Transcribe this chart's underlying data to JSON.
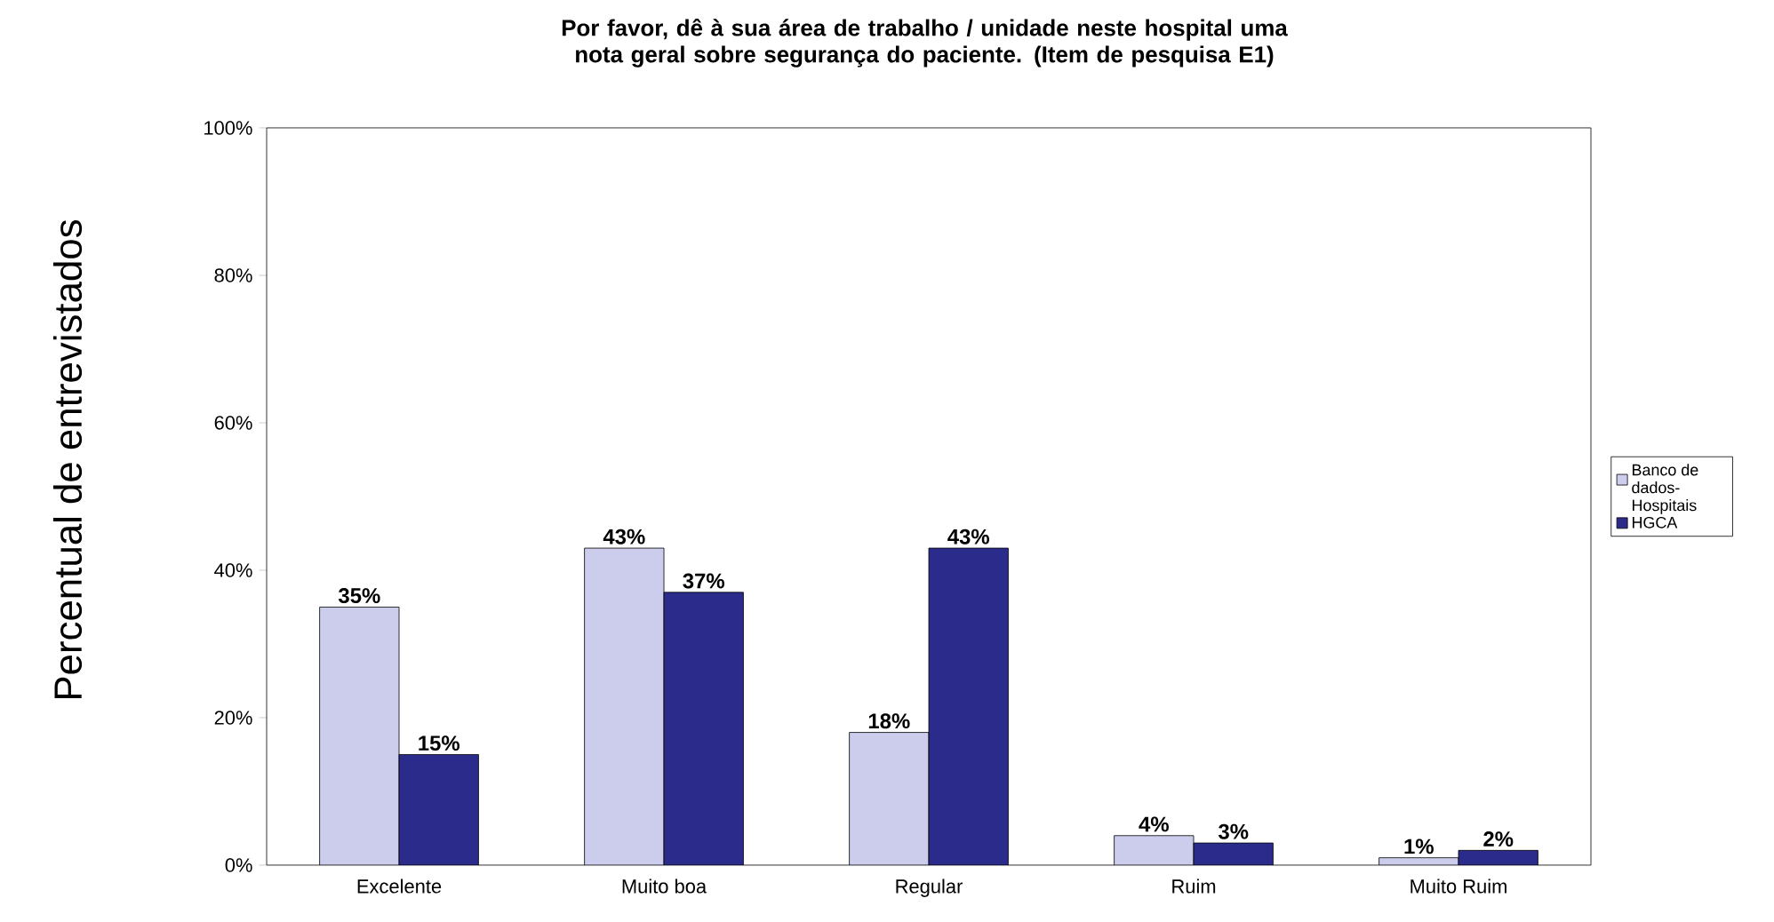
{
  "chart_data": {
    "type": "bar",
    "title": "Por favor, dê à sua área de trabalho / unidade neste hospital uma nota geral sobre segurança do paciente. (Item de pesquisa E1)",
    "ylabel": "Percentual de entrevistados",
    "categories": [
      "Excelente",
      "Muito boa",
      "Regular",
      "Ruim",
      "Muito Ruim"
    ],
    "series": [
      {
        "name": "Banco de dados-Hospitais",
        "color": "#ccccec",
        "values": [
          35,
          43,
          18,
          4,
          1
        ],
        "value_labels": [
          "35%",
          "43%",
          "18%",
          "4%",
          "1%"
        ]
      },
      {
        "name": "HGCA",
        "color": "#2b2b8c",
        "values": [
          15,
          37,
          43,
          3,
          2
        ],
        "value_labels": [
          "15%",
          "37%",
          "43%",
          "3%",
          "2%"
        ]
      }
    ],
    "ylim": [
      0,
      100
    ],
    "yticks": [
      {
        "value": 0,
        "label": "0%"
      },
      {
        "value": 20,
        "label": "20%"
      },
      {
        "value": 40,
        "label": "40%"
      },
      {
        "value": 60,
        "label": "60%"
      },
      {
        "value": 80,
        "label": "80%"
      },
      {
        "value": 100,
        "label": "100%"
      }
    ],
    "grid": false,
    "legend": "right"
  }
}
